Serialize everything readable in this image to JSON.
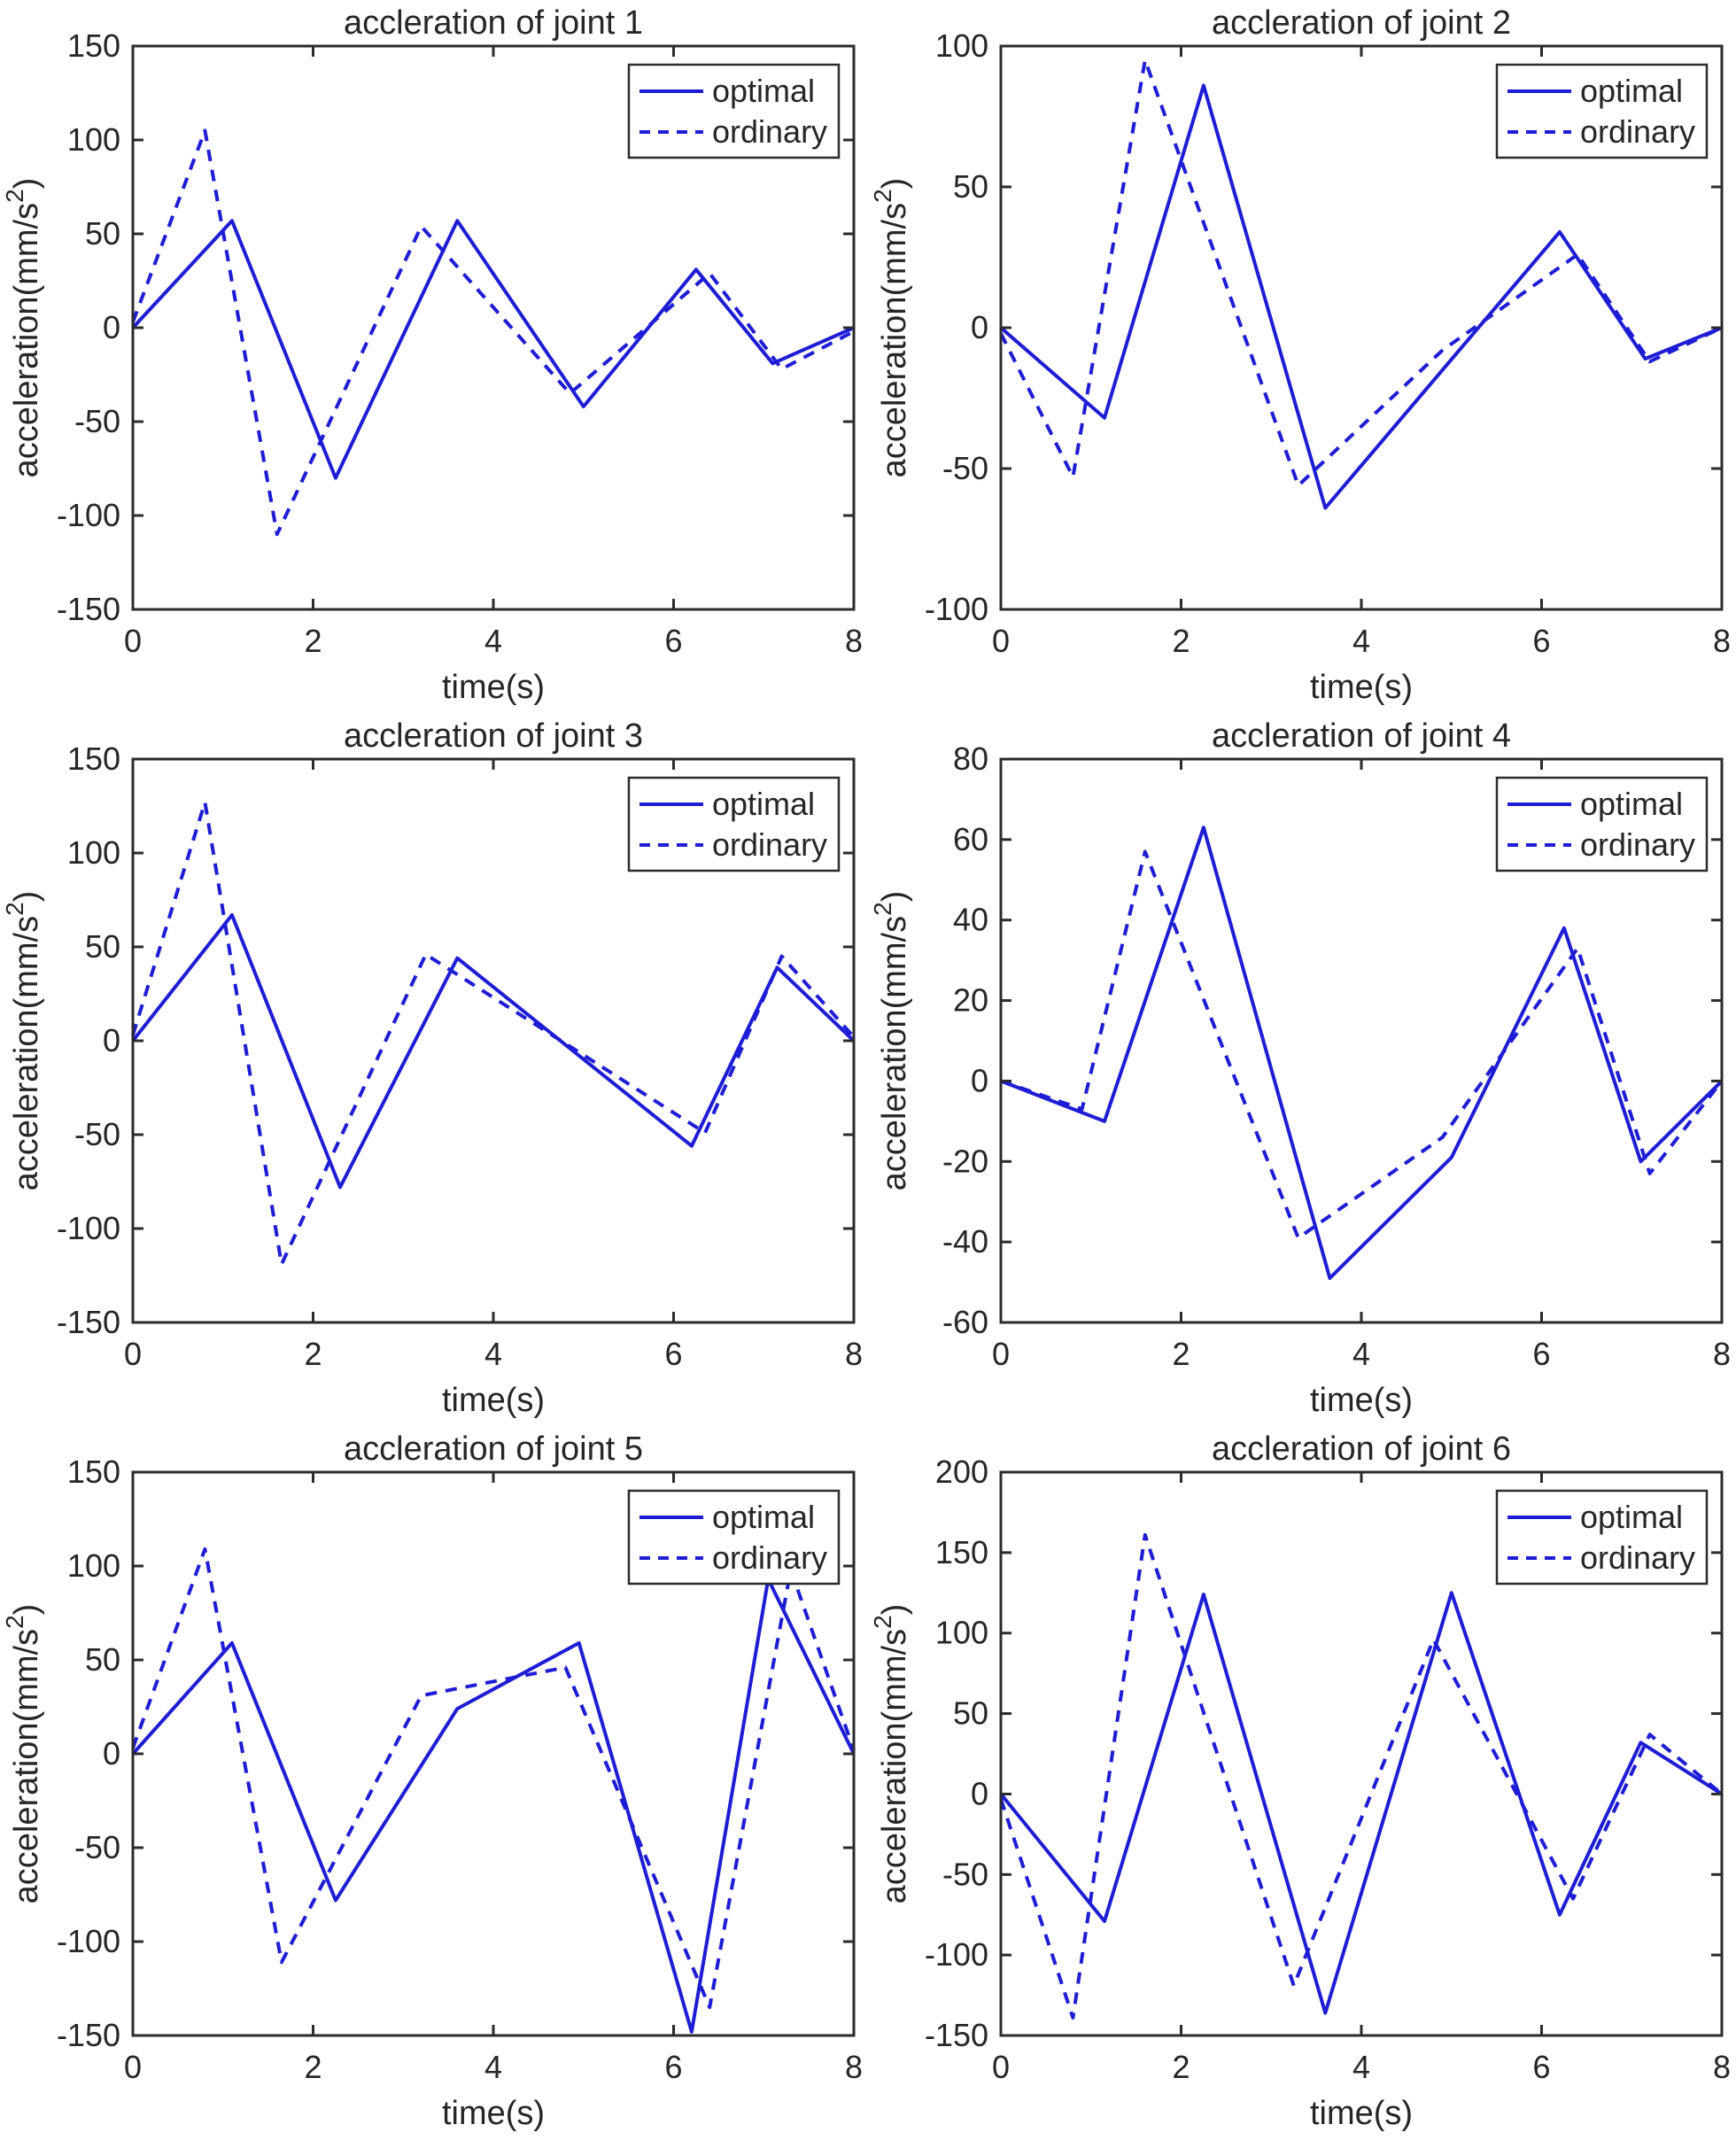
{
  "page": {
    "background": "#ffffff"
  },
  "style": {
    "line_color": "#1d1dd6",
    "axis_color": "#2b2b2b",
    "text_color": "#262626",
    "legend_border": "#2b2b2b",
    "legend_fill": "#ffffff"
  },
  "legend": {
    "items": [
      {
        "label": "optimal",
        "line_style": "solid"
      },
      {
        "label": "ordinary",
        "line_style": "dashed"
      }
    ],
    "position": "top-right"
  },
  "chart_data": [
    {
      "type": "line",
      "title": "accleration of joint 1",
      "xlabel": "time(s)",
      "ylabel": "acceleration(mm/s^2)",
      "xlim": [
        0,
        8
      ],
      "ylim": [
        -150,
        150
      ],
      "xticks": [
        0,
        2,
        4,
        6,
        8
      ],
      "yticks": [
        -150,
        -100,
        -50,
        0,
        50,
        100,
        150
      ],
      "grid": false,
      "legend_position": "top-right",
      "legend_entries": [
        "optimal",
        "ordinary"
      ],
      "series": [
        {
          "name": "optimal",
          "line_style": "solid",
          "x": [
            0,
            1.1,
            2.25,
            3.6,
            5.0,
            6.25,
            7.1,
            8
          ],
          "y": [
            0,
            57,
            -80,
            57,
            -42,
            31,
            -19,
            0
          ]
        },
        {
          "name": "ordinary",
          "line_style": "dashed",
          "x": [
            0,
            0.8,
            1.6,
            3.2,
            4.85,
            6.4,
            7.2,
            8
          ],
          "y": [
            3,
            105,
            -110,
            54,
            -35,
            29,
            -22,
            -2
          ]
        }
      ]
    },
    {
      "type": "line",
      "title": "accleration of joint 2",
      "xlabel": "time(s)",
      "ylabel": "acceleration(mm/s^2)",
      "xlim": [
        0,
        8
      ],
      "ylim": [
        -100,
        100
      ],
      "xticks": [
        0,
        2,
        4,
        6,
        8
      ],
      "yticks": [
        -100,
        -50,
        0,
        50,
        100
      ],
      "grid": false,
      "legend_position": "top-right",
      "legend_entries": [
        "optimal",
        "ordinary"
      ],
      "series": [
        {
          "name": "optimal",
          "line_style": "solid",
          "x": [
            0,
            1.15,
            2.25,
            3.6,
            6.2,
            7.15,
            8
          ],
          "y": [
            0,
            -32,
            86,
            -64,
            34,
            -11,
            0
          ]
        },
        {
          "name": "ordinary",
          "line_style": "dashed",
          "x": [
            0,
            0.8,
            1.6,
            3.3,
            4.9,
            6.4,
            7.2,
            8
          ],
          "y": [
            -2,
            -53,
            95,
            -56,
            -8,
            26,
            -12,
            0
          ]
        }
      ]
    },
    {
      "type": "line",
      "title": "accleration of joint 3",
      "xlabel": "time(s)",
      "ylabel": "acceleration(mm/s^2)",
      "xlim": [
        0,
        8
      ],
      "ylim": [
        -150,
        150
      ],
      "xticks": [
        0,
        2,
        4,
        6,
        8
      ],
      "yticks": [
        -150,
        -100,
        -50,
        0,
        50,
        100,
        150
      ],
      "grid": false,
      "legend_position": "top-right",
      "legend_entries": [
        "optimal",
        "ordinary"
      ],
      "series": [
        {
          "name": "optimal",
          "line_style": "solid",
          "x": [
            0,
            1.1,
            2.3,
            3.6,
            6.2,
            7.15,
            8
          ],
          "y": [
            0,
            67,
            -78,
            44,
            -56,
            39,
            0
          ]
        },
        {
          "name": "ordinary",
          "line_style": "dashed",
          "x": [
            0,
            0.8,
            1.65,
            3.25,
            6.35,
            7.2,
            8
          ],
          "y": [
            3,
            127,
            -119,
            46,
            -49,
            45,
            2
          ]
        }
      ]
    },
    {
      "type": "line",
      "title": "accleration of joint 4",
      "xlabel": "time(s)",
      "ylabel": "acceleration(mm/s^2)",
      "xlim": [
        0,
        8
      ],
      "ylim": [
        -60,
        80
      ],
      "xticks": [
        0,
        2,
        4,
        6,
        8
      ],
      "yticks": [
        -60,
        -40,
        -20,
        0,
        20,
        40,
        60,
        80
      ],
      "grid": false,
      "legend_position": "top-right",
      "legend_entries": [
        "optimal",
        "ordinary"
      ],
      "series": [
        {
          "name": "optimal",
          "line_style": "solid",
          "x": [
            0,
            1.15,
            2.25,
            3.65,
            5.0,
            6.25,
            7.1,
            8
          ],
          "y": [
            0,
            -10,
            63,
            -49,
            -19,
            38,
            -20,
            0
          ]
        },
        {
          "name": "ordinary",
          "line_style": "dashed",
          "x": [
            0,
            0.9,
            1.6,
            3.3,
            4.9,
            6.4,
            7.2,
            8
          ],
          "y": [
            0,
            -7,
            57,
            -39,
            -14,
            33,
            -23,
            0
          ]
        }
      ]
    },
    {
      "type": "line",
      "title": "accleration of joint 5",
      "xlabel": "time(s)",
      "ylabel": "acceleration(mm/s^2)",
      "xlim": [
        0,
        8
      ],
      "ylim": [
        -150,
        150
      ],
      "xticks": [
        0,
        2,
        4,
        6,
        8
      ],
      "yticks": [
        -150,
        -100,
        -50,
        0,
        50,
        100,
        150
      ],
      "grid": false,
      "legend_position": "top-right",
      "legend_entries": [
        "optimal",
        "ordinary"
      ],
      "series": [
        {
          "name": "optimal",
          "line_style": "solid",
          "x": [
            0,
            1.1,
            2.25,
            3.6,
            4.95,
            6.2,
            7.05,
            8
          ],
          "y": [
            0,
            59,
            -78,
            24,
            59,
            -148,
            93,
            0
          ]
        },
        {
          "name": "ordinary",
          "line_style": "dashed",
          "x": [
            0,
            0.8,
            1.65,
            3.2,
            4.8,
            6.4,
            7.3,
            8
          ],
          "y": [
            3,
            109,
            -111,
            31,
            46,
            -135,
            98,
            2
          ]
        }
      ]
    },
    {
      "type": "line",
      "title": "accleration of joint 6",
      "xlabel": "time(s)",
      "ylabel": "acceleration(mm/s^2)",
      "xlim": [
        0,
        8
      ],
      "ylim": [
        -150,
        200
      ],
      "xticks": [
        0,
        2,
        4,
        6,
        8
      ],
      "yticks": [
        -150,
        -100,
        -50,
        0,
        50,
        100,
        150,
        200
      ],
      "grid": false,
      "legend_position": "top-right",
      "legend_entries": [
        "optimal",
        "ordinary"
      ],
      "series": [
        {
          "name": "optimal",
          "line_style": "solid",
          "x": [
            0,
            1.15,
            2.25,
            3.6,
            5.0,
            6.2,
            7.1,
            8
          ],
          "y": [
            0,
            -79,
            124,
            -136,
            125,
            -75,
            32,
            0
          ]
        },
        {
          "name": "ordinary",
          "line_style": "dashed",
          "x": [
            0,
            0.8,
            1.6,
            3.25,
            4.8,
            6.35,
            7.2,
            8
          ],
          "y": [
            -3,
            -139,
            161,
            -119,
            96,
            -65,
            37,
            0
          ]
        }
      ]
    }
  ]
}
